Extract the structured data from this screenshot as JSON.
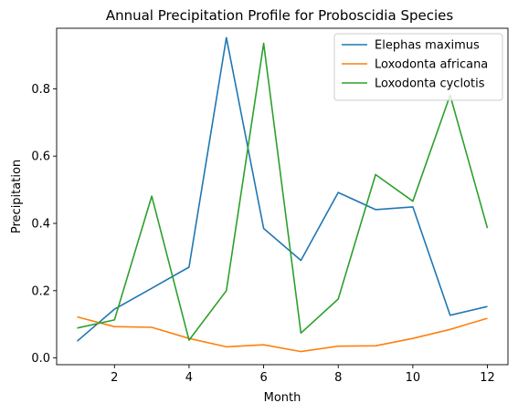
{
  "chart_data": {
    "type": "line",
    "title": "Annual Precipitation Profile for Proboscidia Species",
    "xlabel": "Month",
    "ylabel": "Precipitation",
    "x": [
      1,
      2,
      3,
      4,
      5,
      6,
      7,
      8,
      9,
      10,
      11,
      12
    ],
    "xlim": [
      0.45,
      12.55
    ],
    "ylim": [
      -0.02,
      0.98
    ],
    "xticks": [
      2,
      4,
      6,
      8,
      10,
      12
    ],
    "yticks": [
      0.0,
      0.2,
      0.4,
      0.6,
      0.8
    ],
    "xtick_labels": [
      "2",
      "4",
      "6",
      "8",
      "10",
      "12"
    ],
    "ytick_labels": [
      "0.0",
      "0.2",
      "0.4",
      "0.6",
      "0.8"
    ],
    "grid": false,
    "legend_position": "top-right",
    "series": [
      {
        "name": "Elephas maximus",
        "color": "#1f77b4",
        "values": [
          0.05,
          0.145,
          0.207,
          0.27,
          0.952,
          0.385,
          0.29,
          0.492,
          0.441,
          0.449,
          0.127,
          0.153
        ]
      },
      {
        "name": "Loxodonta africana",
        "color": "#ff7f0e",
        "values": [
          0.122,
          0.093,
          0.091,
          0.058,
          0.033,
          0.039,
          0.019,
          0.035,
          0.036,
          0.058,
          0.085,
          0.118
        ]
      },
      {
        "name": "Loxodonta cyclotis",
        "color": "#2ca02c",
        "values": [
          0.089,
          0.113,
          0.481,
          0.053,
          0.2,
          0.935,
          0.074,
          0.175,
          0.545,
          0.466,
          0.781,
          0.386
        ]
      }
    ]
  }
}
